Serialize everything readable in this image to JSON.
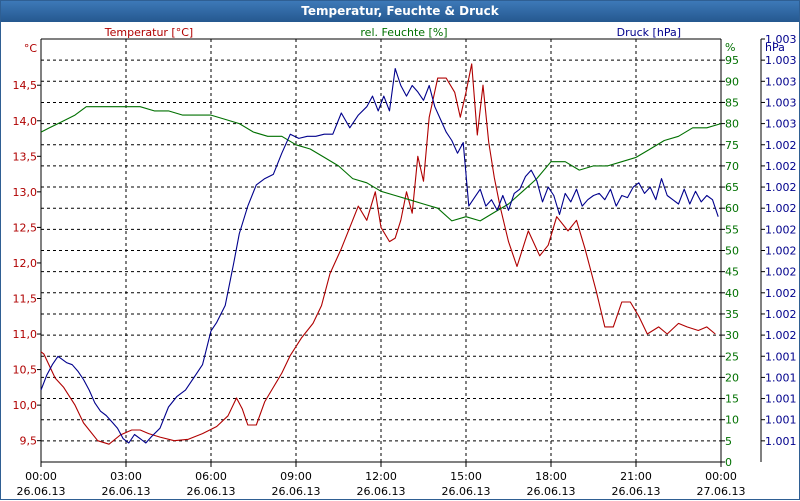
{
  "window": {
    "title": "Temperatur, Feuchte & Druck"
  },
  "colors": {
    "temperature": "#b00000",
    "humidity": "#007000",
    "pressure": "#00008c",
    "axis": "#000000",
    "grid": "#000000",
    "title_bg": "#2d65a0"
  },
  "chart_data": {
    "type": "line",
    "title": "Temperatur, Feuchte & Druck",
    "x_range_hours": [
      0,
      24
    ],
    "x_ticks": [
      {
        "h": 0,
        "time": "00:00",
        "date": "26.06.13"
      },
      {
        "h": 3,
        "time": "03:00",
        "date": "26.06.13"
      },
      {
        "h": 6,
        "time": "06:00",
        "date": "26.06.13"
      },
      {
        "h": 9,
        "time": "09:00",
        "date": "26.06.13"
      },
      {
        "h": 12,
        "time": "12:00",
        "date": "26.06.13"
      },
      {
        "h": 15,
        "time": "15:00",
        "date": "26.06.13"
      },
      {
        "h": 18,
        "time": "18:00",
        "date": "26.06.13"
      },
      {
        "h": 21,
        "time": "21:00",
        "date": "26.06.13"
      },
      {
        "h": 24,
        "time": "00:00",
        "date": "27.06.13"
      }
    ],
    "axes": {
      "temperature": {
        "unit": "°C",
        "label": "Temperatur [°C]",
        "range": [
          9.2,
          15.15
        ],
        "ticks": [
          "9,5",
          "10,0",
          "10,5",
          "11,0",
          "11,5",
          "12,0",
          "12,5",
          "13,0",
          "13,5",
          "14,0",
          "14,5"
        ],
        "tick_values": [
          9.5,
          10,
          10.5,
          11,
          11.5,
          12,
          12.5,
          13,
          13.5,
          14,
          14.5
        ]
      },
      "humidity": {
        "unit": "%",
        "label": "rel. Feuchte [%]",
        "range": [
          0,
          100
        ],
        "ticks": [
          "0",
          "5",
          "10",
          "15",
          "20",
          "25",
          "30",
          "35",
          "40",
          "45",
          "50",
          "55",
          "60",
          "65",
          "70",
          "75",
          "80",
          "85",
          "90",
          "95"
        ],
        "tick_values": [
          0,
          5,
          10,
          15,
          20,
          25,
          30,
          35,
          40,
          45,
          50,
          55,
          60,
          65,
          70,
          75,
          80,
          85,
          90,
          95
        ]
      },
      "pressure": {
        "unit": "hPa",
        "label": "Druck [hPa]",
        "range": [
          0,
          20
        ],
        "ticks": [
          "1.001",
          "1.001",
          "1.001",
          "1.001",
          "1.001",
          "1.002",
          "1.002",
          "1.002",
          "1.002",
          "1.002",
          "1.002",
          "1.002",
          "1.002",
          "1.002",
          "1.002",
          "1.003",
          "1.003",
          "1.003",
          "1.003",
          "1.003"
        ],
        "tick_positions": [
          1,
          2,
          3,
          4,
          5,
          6,
          7,
          8,
          9,
          10,
          11,
          12,
          13,
          14,
          15,
          16,
          17,
          18,
          19,
          20
        ]
      }
    },
    "series": [
      {
        "name": "Temperatur [°C]",
        "axis": "temperature",
        "color": "#b00000",
        "x": [
          0,
          0.1,
          0.3,
          0.5,
          0.8,
          1.2,
          1.5,
          2.0,
          2.4,
          2.8,
          3.2,
          3.5,
          3.8,
          4.2,
          4.7,
          5.2,
          5.7,
          6.2,
          6.6,
          6.9,
          7.1,
          7.3,
          7.6,
          7.9,
          8.2,
          8.5,
          8.8,
          9.2,
          9.6,
          9.9,
          10.2,
          10.6,
          10.9,
          11.2,
          11.5,
          11.8,
          12.0,
          12.3,
          12.5,
          12.7,
          12.9,
          13.1,
          13.3,
          13.5,
          13.7,
          14.0,
          14.3,
          14.6,
          14.8,
          15.0,
          15.2,
          15.4,
          15.6,
          15.8,
          16.0,
          16.2,
          16.5,
          16.8,
          17.2,
          17.6,
          17.9,
          18.2,
          18.6,
          18.9,
          19.2,
          19.6,
          19.9,
          20.2,
          20.5,
          20.8,
          21.1,
          21.4,
          21.8,
          22.1,
          22.5,
          22.8,
          23.2,
          23.5,
          23.8
        ],
        "values": [
          10.75,
          10.72,
          10.55,
          10.38,
          10.25,
          10.0,
          9.75,
          9.5,
          9.45,
          9.58,
          9.65,
          9.65,
          9.6,
          9.55,
          9.5,
          9.52,
          9.6,
          9.7,
          9.85,
          10.1,
          9.95,
          9.72,
          9.72,
          10.05,
          10.25,
          10.45,
          10.7,
          10.95,
          11.15,
          11.4,
          11.85,
          12.2,
          12.5,
          12.8,
          12.6,
          13.0,
          12.5,
          12.3,
          12.35,
          12.6,
          13.0,
          12.7,
          13.5,
          13.15,
          14.05,
          14.6,
          14.6,
          14.4,
          14.05,
          14.4,
          14.8,
          13.8,
          14.5,
          13.7,
          13.2,
          12.8,
          12.3,
          11.95,
          12.45,
          12.1,
          12.25,
          12.65,
          12.45,
          12.6,
          12.2,
          11.6,
          11.1,
          11.1,
          11.45,
          11.45,
          11.25,
          11.0,
          11.1,
          11.0,
          11.15,
          11.1,
          11.05,
          11.1,
          11.0
        ]
      },
      {
        "name": "rel. Feuchte [%]",
        "axis": "humidity",
        "color": "#007000",
        "x": [
          0,
          0.3,
          0.6,
          0.9,
          1.2,
          1.6,
          2.0,
          2.5,
          3.0,
          3.5,
          4.0,
          4.5,
          5.0,
          5.5,
          6.0,
          6.5,
          7.0,
          7.5,
          8.0,
          8.5,
          9.0,
          9.5,
          10.0,
          10.5,
          11.0,
          11.5,
          12.0,
          12.5,
          13.0,
          13.5,
          14.0,
          14.5,
          15.0,
          15.5,
          16.0,
          16.5,
          17.0,
          17.5,
          18.0,
          18.5,
          19.0,
          19.5,
          20.0,
          20.5,
          21.0,
          21.5,
          22.0,
          22.5,
          23.0,
          23.5,
          24.0
        ],
        "values": [
          78,
          79,
          80,
          81,
          82,
          84,
          84,
          84,
          84,
          84,
          83,
          83,
          82,
          82,
          82,
          81,
          80,
          78,
          77,
          77,
          75,
          74,
          72,
          70,
          67,
          66,
          64,
          63,
          62,
          61,
          60,
          57,
          58,
          57,
          59,
          61,
          64,
          67,
          71,
          71,
          69,
          70,
          70,
          71,
          72,
          74,
          76,
          77,
          79,
          79,
          80
        ]
      },
      {
        "name": "Druck [hPa]",
        "axis": "pressure",
        "color": "#00008c",
        "x": [
          0,
          0.2,
          0.4,
          0.6,
          0.9,
          1.1,
          1.3,
          1.5,
          1.7,
          1.9,
          2.1,
          2.3,
          2.5,
          2.7,
          2.9,
          3.1,
          3.3,
          3.5,
          3.7,
          3.9,
          4.2,
          4.5,
          4.8,
          5.1,
          5.4,
          5.7,
          6.0,
          6.2,
          6.5,
          6.8,
          7.0,
          7.3,
          7.6,
          7.9,
          8.2,
          8.5,
          8.8,
          9.1,
          9.4,
          9.7,
          10.0,
          10.3,
          10.6,
          10.9,
          11.2,
          11.5,
          11.7,
          11.9,
          12.1,
          12.3,
          12.5,
          12.7,
          12.9,
          13.1,
          13.3,
          13.5,
          13.7,
          13.9,
          14.1,
          14.3,
          14.5,
          14.7,
          14.9,
          15.1,
          15.3,
          15.5,
          15.7,
          15.9,
          16.1,
          16.3,
          16.5,
          16.7,
          16.9,
          17.1,
          17.3,
          17.5,
          17.7,
          17.9,
          18.1,
          18.3,
          18.5,
          18.7,
          18.9,
          19.1,
          19.3,
          19.5,
          19.7,
          19.9,
          20.1,
          20.3,
          20.5,
          20.7,
          20.9,
          21.1,
          21.3,
          21.5,
          21.7,
          21.9,
          22.1,
          22.3,
          22.5,
          22.7,
          22.9,
          23.1,
          23.3,
          23.5,
          23.7,
          23.9
        ],
        "values": [
          3.4,
          4.1,
          4.6,
          5.0,
          4.7,
          4.6,
          4.3,
          3.9,
          3.4,
          2.8,
          2.4,
          2.2,
          1.9,
          1.6,
          1.1,
          0.9,
          1.3,
          1.1,
          0.9,
          1.2,
          1.6,
          2.6,
          3.1,
          3.4,
          4.0,
          4.6,
          6.2,
          6.6,
          7.4,
          9.4,
          10.8,
          12.1,
          13.1,
          13.4,
          13.6,
          14.6,
          15.5,
          15.3,
          15.4,
          15.4,
          15.5,
          15.5,
          16.5,
          15.8,
          16.4,
          16.8,
          17.3,
          16.6,
          17.3,
          16.6,
          18.6,
          17.8,
          17.3,
          17.8,
          17.5,
          17.1,
          17.8,
          16.8,
          16.2,
          15.6,
          15.2,
          14.6,
          15.1,
          12.1,
          12.5,
          12.9,
          12.1,
          12.4,
          11.9,
          12.6,
          11.9,
          12.7,
          12.9,
          13.5,
          13.8,
          13.3,
          12.3,
          13.0,
          12.6,
          11.7,
          12.7,
          12.3,
          12.9,
          12.1,
          12.4,
          12.6,
          12.7,
          12.4,
          12.9,
          12.1,
          12.6,
          12.5,
          13.0,
          13.2,
          12.7,
          13.0,
          12.4,
          13.4,
          12.6,
          12.4,
          12.2,
          12.9,
          12.2,
          12.8,
          12.3,
          12.6,
          12.4,
          11.6
        ]
      }
    ]
  }
}
